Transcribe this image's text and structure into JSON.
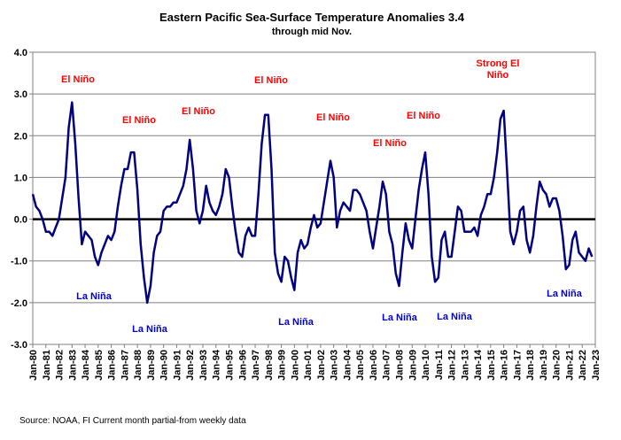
{
  "chart_data": {
    "type": "line",
    "title": "Eastern Pacific Sea-Surface Temperature Anomalies 3.4",
    "subtitle": "through mid Nov.",
    "source": "Source: NOAA, FI     Current month partial-from weekly data",
    "ylim": [
      -3,
      4
    ],
    "yticks": [
      {
        "value": 4,
        "label": "4.0"
      },
      {
        "value": 3,
        "label": "3.0"
      },
      {
        "value": 2,
        "label": "2.0"
      },
      {
        "value": 1,
        "label": "1.0"
      },
      {
        "value": 0,
        "label": "0.0"
      },
      {
        "value": -1,
        "label": "-1.0"
      },
      {
        "value": -2,
        "label": "-2.0"
      },
      {
        "value": -3,
        "label": "-3.0"
      }
    ],
    "grid": true,
    "xticks": [
      "Jan-80",
      "Jan-81",
      "Jan-82",
      "Jan-83",
      "Jan-84",
      "Jan-85",
      "Jan-86",
      "Jan-87",
      "Jan-88",
      "Jan-89",
      "Jan-90",
      "Jan-91",
      "Jan-92",
      "Jan-93",
      "Jan-94",
      "Jan-95",
      "Jan-96",
      "Jan-97",
      "Jan-98",
      "Jan-99",
      "Jan-00",
      "Jan-01",
      "Jan-02",
      "Jan-03",
      "Jan-04",
      "Jan-05",
      "Jan-06",
      "Jan-07",
      "Jan-08",
      "Jan-09",
      "Jan-10",
      "Jan-11",
      "Jan-12",
      "Jan-13",
      "Jan-14",
      "Jan-15",
      "Jan-16",
      "Jan-17",
      "Jan-18",
      "Jan-19",
      "Jan-20",
      "Jan-21",
      "Jan-22",
      "Jan-23"
    ],
    "x": [
      "Jan-80",
      "Apr-80",
      "Jul-80",
      "Oct-80",
      "Jan-81",
      "Apr-81",
      "Jul-81",
      "Oct-81",
      "Jan-82",
      "Apr-82",
      "Jul-82",
      "Oct-82",
      "Jan-83",
      "Apr-83",
      "Jul-83",
      "Oct-83",
      "Jan-84",
      "Apr-84",
      "Jul-84",
      "Oct-84",
      "Jan-85",
      "Apr-85",
      "Jul-85",
      "Oct-85",
      "Jan-86",
      "Apr-86",
      "Jul-86",
      "Oct-86",
      "Jan-87",
      "Apr-87",
      "Jul-87",
      "Oct-87",
      "Jan-88",
      "Apr-88",
      "Jul-88",
      "Oct-88",
      "Jan-89",
      "Apr-89",
      "Jul-89",
      "Oct-89",
      "Jan-90",
      "Apr-90",
      "Jul-90",
      "Oct-90",
      "Jan-91",
      "Apr-91",
      "Jul-91",
      "Oct-91",
      "Jan-92",
      "Apr-92",
      "Jul-92",
      "Oct-92",
      "Jan-93",
      "Apr-93",
      "Jul-93",
      "Oct-93",
      "Jan-94",
      "Apr-94",
      "Jul-94",
      "Oct-94",
      "Jan-95",
      "Apr-95",
      "Jul-95",
      "Oct-95",
      "Jan-96",
      "Apr-96",
      "Jul-96",
      "Oct-96",
      "Jan-97",
      "Apr-97",
      "Jul-97",
      "Oct-97",
      "Jan-98",
      "Apr-98",
      "Jul-98",
      "Oct-98",
      "Jan-99",
      "Apr-99",
      "Jul-99",
      "Oct-99",
      "Jan-00",
      "Apr-00",
      "Jul-00",
      "Oct-00",
      "Jan-01",
      "Apr-01",
      "Jul-01",
      "Oct-01",
      "Jan-02",
      "Apr-02",
      "Jul-02",
      "Oct-02",
      "Jan-03",
      "Apr-03",
      "Jul-03",
      "Oct-03",
      "Jan-04",
      "Apr-04",
      "Jul-04",
      "Oct-04",
      "Jan-05",
      "Apr-05",
      "Jul-05",
      "Oct-05",
      "Jan-06",
      "Apr-06",
      "Jul-06",
      "Oct-06",
      "Jan-07",
      "Apr-07",
      "Jul-07",
      "Oct-07",
      "Jan-08",
      "Apr-08",
      "Jul-08",
      "Oct-08",
      "Jan-09",
      "Apr-09",
      "Jul-09",
      "Oct-09",
      "Jan-10",
      "Apr-10",
      "Jul-10",
      "Oct-10",
      "Jan-11",
      "Apr-11",
      "Jul-11",
      "Oct-11",
      "Jan-12",
      "Apr-12",
      "Jul-12",
      "Oct-12",
      "Jan-13",
      "Apr-13",
      "Jul-13",
      "Oct-13",
      "Jan-14",
      "Apr-14",
      "Jul-14",
      "Oct-14",
      "Jan-15",
      "Apr-15",
      "Jul-15",
      "Oct-15",
      "Jan-16",
      "Apr-16",
      "Jul-16",
      "Oct-16",
      "Jan-17",
      "Apr-17",
      "Jul-17",
      "Oct-17",
      "Jan-18",
      "Apr-18",
      "Jul-18",
      "Oct-18",
      "Jan-19",
      "Apr-19",
      "Jul-19",
      "Oct-19",
      "Jan-20",
      "Apr-20",
      "Jul-20",
      "Oct-20",
      "Jan-21",
      "Apr-21",
      "Jul-21",
      "Oct-21",
      "Jan-22",
      "Apr-22",
      "Jul-22",
      "Oct-22",
      "Jan-23"
    ],
    "series": [
      {
        "color": "#000080",
        "values": [
          0.6,
          0.3,
          0.2,
          0.0,
          -0.3,
          -0.3,
          -0.4,
          -0.2,
          0.0,
          0.5,
          1.0,
          2.2,
          2.8,
          1.8,
          0.5,
          -0.6,
          -0.3,
          -0.4,
          -0.5,
          -0.9,
          -1.1,
          -0.8,
          -0.6,
          -0.4,
          -0.5,
          -0.3,
          0.3,
          0.8,
          1.2,
          1.2,
          1.6,
          1.6,
          0.7,
          -0.6,
          -1.4,
          -2.0,
          -1.6,
          -0.8,
          -0.4,
          -0.3,
          0.2,
          0.3,
          0.3,
          0.4,
          0.4,
          0.6,
          0.8,
          1.2,
          1.9,
          1.2,
          0.2,
          -0.1,
          0.2,
          0.8,
          0.4,
          0.2,
          0.1,
          0.3,
          0.6,
          1.2,
          1.0,
          0.3,
          -0.3,
          -0.8,
          -0.9,
          -0.4,
          -0.2,
          -0.4,
          -0.4,
          0.6,
          1.8,
          2.5,
          2.5,
          1.2,
          -0.8,
          -1.3,
          -1.5,
          -0.9,
          -1.0,
          -1.4,
          -1.7,
          -0.8,
          -0.5,
          -0.7,
          -0.6,
          -0.2,
          0.1,
          -0.2,
          -0.1,
          0.4,
          0.9,
          1.4,
          1.0,
          -0.2,
          0.2,
          0.4,
          0.3,
          0.2,
          0.7,
          0.7,
          0.6,
          0.4,
          0.2,
          -0.3,
          -0.7,
          -0.2,
          0.3,
          0.9,
          0.6,
          -0.3,
          -0.6,
          -1.3,
          -1.6,
          -0.8,
          -0.1,
          -0.5,
          -0.7,
          0.0,
          0.7,
          1.2,
          1.6,
          0.6,
          -0.9,
          -1.5,
          -1.4,
          -0.5,
          -0.3,
          -0.9,
          -0.9,
          -0.3,
          0.3,
          0.2,
          -0.3,
          -0.3,
          -0.3,
          -0.2,
          -0.4,
          0.1,
          0.3,
          0.6,
          0.6,
          1.0,
          1.6,
          2.4,
          2.6,
          1.2,
          -0.3,
          -0.6,
          -0.3,
          0.2,
          0.3,
          -0.5,
          -0.8,
          -0.4,
          0.3,
          0.9,
          0.7,
          0.6,
          0.3,
          0.5,
          0.5,
          0.2,
          -0.4,
          -1.2,
          -1.1,
          -0.5,
          -0.3,
          -0.8,
          -0.9,
          -1.0,
          -0.7,
          -0.9,
          null
        ]
      }
    ],
    "annotations": [
      {
        "text": "El Niño",
        "color": "#ff0000"
      },
      {
        "text": "El Niño",
        "color": "#ff0000"
      },
      {
        "text": "El Niño",
        "color": "#ff0000"
      },
      {
        "text": "El Niño",
        "color": "#ff0000"
      },
      {
        "text": "El Niño",
        "color": "#ff0000"
      },
      {
        "text": "El Niño",
        "color": "#ff0000"
      },
      {
        "text": "El Niño",
        "color": "#ff0000"
      },
      {
        "text": "Strong El Niño",
        "color": "#ff0000"
      },
      {
        "text": "La Niña",
        "color": "#0000cc"
      },
      {
        "text": "La Niña",
        "color": "#0000cc"
      },
      {
        "text": "La Niña",
        "color": "#0000cc"
      },
      {
        "text": "La Niña",
        "color": "#0000cc"
      },
      {
        "text": "La Niña",
        "color": "#0000cc"
      },
      {
        "text": "La Niña",
        "color": "#0000cc"
      }
    ]
  }
}
